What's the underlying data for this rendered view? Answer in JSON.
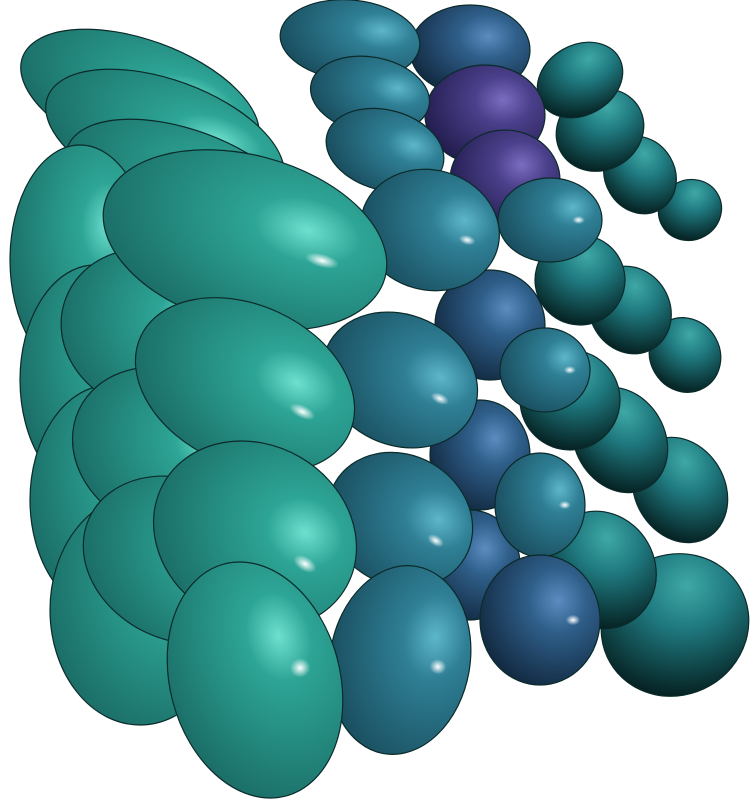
{
  "colors": {
    "background": "#ffffff",
    "teal": "#2a9a8e",
    "steel": "#2f7f95",
    "navy": "#2f5f8a",
    "violet": "#4a3f8a",
    "dark_teal": "#1f7a80"
  },
  "legend": []
}
